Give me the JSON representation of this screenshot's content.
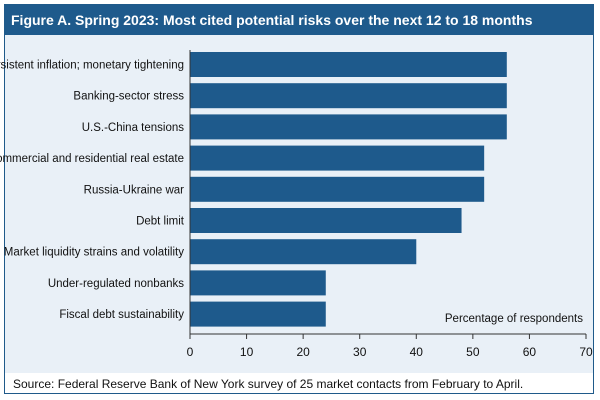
{
  "chart_data": {
    "type": "bar",
    "orientation": "horizontal",
    "title": "Figure A. Spring 2023: Most cited potential risks over the next 12 to 18 months",
    "xlabel": "Percentage of respondents",
    "xlim": [
      0,
      70
    ],
    "xticks": [
      0,
      10,
      20,
      30,
      40,
      50,
      60,
      70
    ],
    "categories": [
      "Persistent inflation; monetary tightening",
      "Banking-sector stress",
      "U.S.-China tensions",
      "Commercial and residential real estate",
      "Russia-Ukraine war",
      "Debt limit",
      "Market liquidity strains and volatility",
      "Under-regulated nonbanks",
      "Fiscal debt sustainability"
    ],
    "values": [
      56,
      56,
      56,
      52,
      52,
      48,
      40,
      24,
      24
    ],
    "bar_color": "#1e5a8c",
    "grid": false,
    "source": "Source: Federal Reserve Bank of New York survey of 25 market contacts from February to April."
  }
}
